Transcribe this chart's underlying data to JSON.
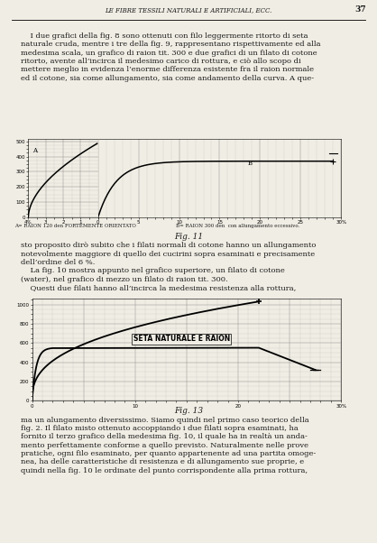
{
  "page_title": "LE FIBRE TESSILI NATURALI E ARTIFICIALI, ECC.",
  "page_number": "37",
  "bg_color": "#f0ede4",
  "text_color": "#1a1a1a",
  "fig11_caption": "Fig. 11",
  "fig11_xlabel_left": "A= RAION 120 den FORTEMENTE ORIENTATO",
  "fig11_xlabel_right": "B= RAION 300 den  con allungamento eccessivo.",
  "fig13_caption": "Fig. 13",
  "fig13_label": "SETA NATURALE E RAION"
}
